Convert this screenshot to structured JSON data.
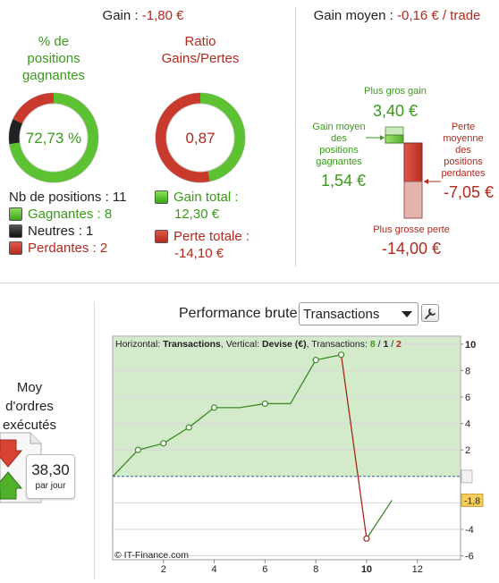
{
  "gain": {
    "label": "Gain :",
    "value": "-1,80 €"
  },
  "gain_moyen": {
    "label": "Gain moyen :",
    "value": "-0,16 € / trade"
  },
  "pct_positions": {
    "title_line1": "% de",
    "title_line2": "positions",
    "title_line3": "gagnantes",
    "value": "72,73 %",
    "won_fraction": 0.7273,
    "neutral_fraction": 0.0909,
    "lost_fraction": 0.1818
  },
  "ratio": {
    "title_line1": "Ratio",
    "title_line2": "Gains/Pertes",
    "value": "0,87",
    "gain_fraction": 0.465
  },
  "positions": {
    "nb_label": "Nb de positions : 11",
    "gagnantes": "Gagnantes : 8",
    "neutres": "Neutres : 1",
    "perdantes": "Perdantes : 2"
  },
  "totals": {
    "gain_label": "Gain total :",
    "gain_value": "12,30 €",
    "perte_label": "Perte totale :",
    "perte_value": "-14,10 €"
  },
  "stats": {
    "plus_gros_gain_label": "Plus gros gain",
    "plus_gros_gain_value": "3,40 €",
    "gain_moyen_label_1": "Gain moyen",
    "gain_moyen_label_2": "des",
    "gain_moyen_label_3": "positions",
    "gain_moyen_label_4": "gagnantes",
    "gain_moyen_value": "1,54 €",
    "perte_moyenne_label_1": "Perte",
    "perte_moyenne_label_2": "moyenne",
    "perte_moyenne_label_3": "des",
    "perte_moyenne_label_4": "positions",
    "perte_moyenne_label_5": "perdantes",
    "perte_moyenne_value": "-7,05 €",
    "plus_grosse_perte_label": "Plus grosse perte",
    "plus_grosse_perte_value": "-14,00 €"
  },
  "ordres": {
    "label_1": "Moy",
    "label_2": "d'ordres",
    "label_3": "exécutés :",
    "value": "38,30",
    "unit": "par jour"
  },
  "perf": {
    "label": "Performance brute",
    "select_value": "Transactions"
  },
  "chart_data": {
    "type": "line",
    "header_prefix": "Horizontal:",
    "header_h": "Transactions",
    "header_mid": ", Vertical:",
    "header_v": "Devise (€)",
    "header_tr": ", Transactions:",
    "header_w": "8",
    "header_n": "1",
    "header_l": "2",
    "header_sep": " / ",
    "watermark": "© IT-Finance.com",
    "x": [
      0,
      1,
      2,
      3,
      4,
      5,
      6,
      7,
      8,
      9,
      10,
      11
    ],
    "y": [
      0,
      2,
      2.5,
      3.7,
      5.2,
      5.2,
      5.5,
      5.5,
      8.8,
      9.2,
      -4.7,
      -1.8
    ],
    "markers": [
      1,
      2,
      3,
      4,
      6,
      8,
      9,
      10
    ],
    "xlim": [
      0,
      13.7
    ],
    "ylim": [
      -6.3,
      10.6
    ],
    "xticks": [
      "2",
      "4",
      "6",
      "8",
      "10",
      "12"
    ],
    "yticks": [
      "10",
      "8",
      "6",
      "4",
      "2",
      "0",
      "-2",
      "-4",
      "-6"
    ],
    "current_value": "-1,8",
    "colors": {
      "gain": "#3d8a26",
      "loss": "#a8261a",
      "fill": "#d3ebcb"
    }
  }
}
